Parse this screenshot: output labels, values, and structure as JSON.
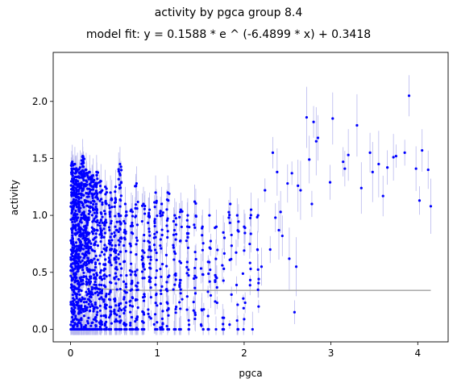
{
  "chart_data": {
    "type": "scatter",
    "title": "activity by pgca group 8.4",
    "subtitle": "model fit: y = 0.1588 * e ^ (-6.4899 * x) + 0.3418",
    "xlabel": "pgca",
    "ylabel": "activity",
    "xlim": [
      -0.2,
      4.35
    ],
    "ylim": [
      -0.11,
      2.43
    ],
    "xticks": [
      0,
      1,
      2,
      3,
      4
    ],
    "yticks": [
      0.0,
      0.5,
      1.0,
      1.5,
      2.0
    ],
    "ytick_labels": [
      "0.0",
      "0.5",
      "1.0",
      "1.5",
      "2.0"
    ],
    "grid": false,
    "colors": {
      "points": "#0000ff",
      "error_bars": "#b8b8ee",
      "fit_line": "#a0a0a0"
    },
    "fit": {
      "a": 0.1588,
      "b": -6.4899,
      "c": 0.3418,
      "x_range": [
        0,
        4.15
      ]
    },
    "dense_columns": [
      {
        "x": 0.02,
        "n": 150,
        "ymin": 0.0,
        "ymax": 1.47
      },
      {
        "x": 0.05,
        "n": 140,
        "ymin": 0.0,
        "ymax": 1.45
      },
      {
        "x": 0.08,
        "n": 130,
        "ymin": 0.0,
        "ymax": 1.4
      },
      {
        "x": 0.11,
        "n": 120,
        "ymin": 0.0,
        "ymax": 1.42
      },
      {
        "x": 0.14,
        "n": 110,
        "ymin": 0.0,
        "ymax": 1.52
      },
      {
        "x": 0.18,
        "n": 100,
        "ymin": 0.0,
        "ymax": 1.4
      },
      {
        "x": 0.22,
        "n": 90,
        "ymin": 0.0,
        "ymax": 1.38
      },
      {
        "x": 0.26,
        "n": 80,
        "ymin": 0.0,
        "ymax": 1.35
      },
      {
        "x": 0.3,
        "n": 75,
        "ymin": 0.0,
        "ymax": 1.38
      },
      {
        "x": 0.35,
        "n": 70,
        "ymin": 0.0,
        "ymax": 1.3
      },
      {
        "x": 0.4,
        "n": 65,
        "ymin": 0.0,
        "ymax": 1.25
      },
      {
        "x": 0.46,
        "n": 60,
        "ymin": 0.0,
        "ymax": 1.2
      },
      {
        "x": 0.52,
        "n": 55,
        "ymin": 0.0,
        "ymax": 1.25
      },
      {
        "x": 0.57,
        "n": 55,
        "ymin": 0.0,
        "ymax": 1.45
      },
      {
        "x": 0.63,
        "n": 45,
        "ymin": 0.0,
        "ymax": 1.1
      },
      {
        "x": 0.7,
        "n": 42,
        "ymin": 0.0,
        "ymax": 1.05
      },
      {
        "x": 0.76,
        "n": 40,
        "ymin": 0.0,
        "ymax": 1.28
      },
      {
        "x": 0.84,
        "n": 36,
        "ymin": 0.0,
        "ymax": 1.1
      },
      {
        "x": 0.91,
        "n": 32,
        "ymin": 0.0,
        "ymax": 1.05
      },
      {
        "x": 0.98,
        "n": 30,
        "ymin": 0.0,
        "ymax": 1.2
      },
      {
        "x": 1.05,
        "n": 28,
        "ymin": 0.0,
        "ymax": 1.1
      },
      {
        "x": 1.12,
        "n": 26,
        "ymin": 0.0,
        "ymax": 1.2
      },
      {
        "x": 1.2,
        "n": 24,
        "ymin": 0.0,
        "ymax": 1.0
      },
      {
        "x": 1.27,
        "n": 22,
        "ymin": 0.0,
        "ymax": 1.05
      },
      {
        "x": 1.35,
        "n": 20,
        "ymin": 0.0,
        "ymax": 1.0
      },
      {
        "x": 1.43,
        "n": 18,
        "ymin": 0.0,
        "ymax": 1.12
      },
      {
        "x": 1.52,
        "n": 14,
        "ymin": 0.0,
        "ymax": 0.9
      },
      {
        "x": 1.6,
        "n": 13,
        "ymin": 0.0,
        "ymax": 1.0
      },
      {
        "x": 1.68,
        "n": 12,
        "ymin": 0.0,
        "ymax": 0.9
      },
      {
        "x": 1.76,
        "n": 11,
        "ymin": 0.0,
        "ymax": 0.85
      },
      {
        "x": 1.84,
        "n": 10,
        "ymin": 0.0,
        "ymax": 1.1
      },
      {
        "x": 1.92,
        "n": 10,
        "ymin": 0.0,
        "ymax": 1.0
      },
      {
        "x": 2.0,
        "n": 9,
        "ymin": 0.0,
        "ymax": 0.9
      },
      {
        "x": 2.08,
        "n": 9,
        "ymin": 0.0,
        "ymax": 1.05
      },
      {
        "x": 2.16,
        "n": 8,
        "ymin": 0.2,
        "ymax": 1.0
      }
    ],
    "sparse_points": [
      [
        2.2,
        0.55
      ],
      [
        2.3,
        0.7
      ],
      [
        2.24,
        1.22
      ],
      [
        2.33,
        1.55
      ],
      [
        2.38,
        1.38
      ],
      [
        2.42,
        1.03
      ],
      [
        2.4,
        0.87
      ],
      [
        2.36,
        0.98
      ],
      [
        2.44,
        0.82
      ],
      [
        2.5,
        1.28
      ],
      [
        2.52,
        0.62
      ],
      [
        2.55,
        1.37
      ],
      [
        2.58,
        0.15
      ],
      [
        2.6,
        0.55
      ],
      [
        2.62,
        1.26
      ],
      [
        2.65,
        1.22
      ],
      [
        2.72,
        1.86
      ],
      [
        2.75,
        1.49
      ],
      [
        2.78,
        1.1
      ],
      [
        2.8,
        1.82
      ],
      [
        2.83,
        1.65
      ],
      [
        2.85,
        1.68
      ],
      [
        2.99,
        1.29
      ],
      [
        3.02,
        1.85
      ],
      [
        3.14,
        1.47
      ],
      [
        3.16,
        1.41
      ],
      [
        3.2,
        1.53
      ],
      [
        3.3,
        1.79
      ],
      [
        3.35,
        1.24
      ],
      [
        3.45,
        1.55
      ],
      [
        3.48,
        1.38
      ],
      [
        3.55,
        1.45
      ],
      [
        3.6,
        1.17
      ],
      [
        3.65,
        1.42
      ],
      [
        3.72,
        1.51
      ],
      [
        3.75,
        1.52
      ],
      [
        3.85,
        1.55
      ],
      [
        3.9,
        2.05
      ],
      [
        3.98,
        1.41
      ],
      [
        4.02,
        1.13
      ],
      [
        4.05,
        1.57
      ],
      [
        4.12,
        1.4
      ],
      [
        4.15,
        1.08
      ]
    ]
  }
}
